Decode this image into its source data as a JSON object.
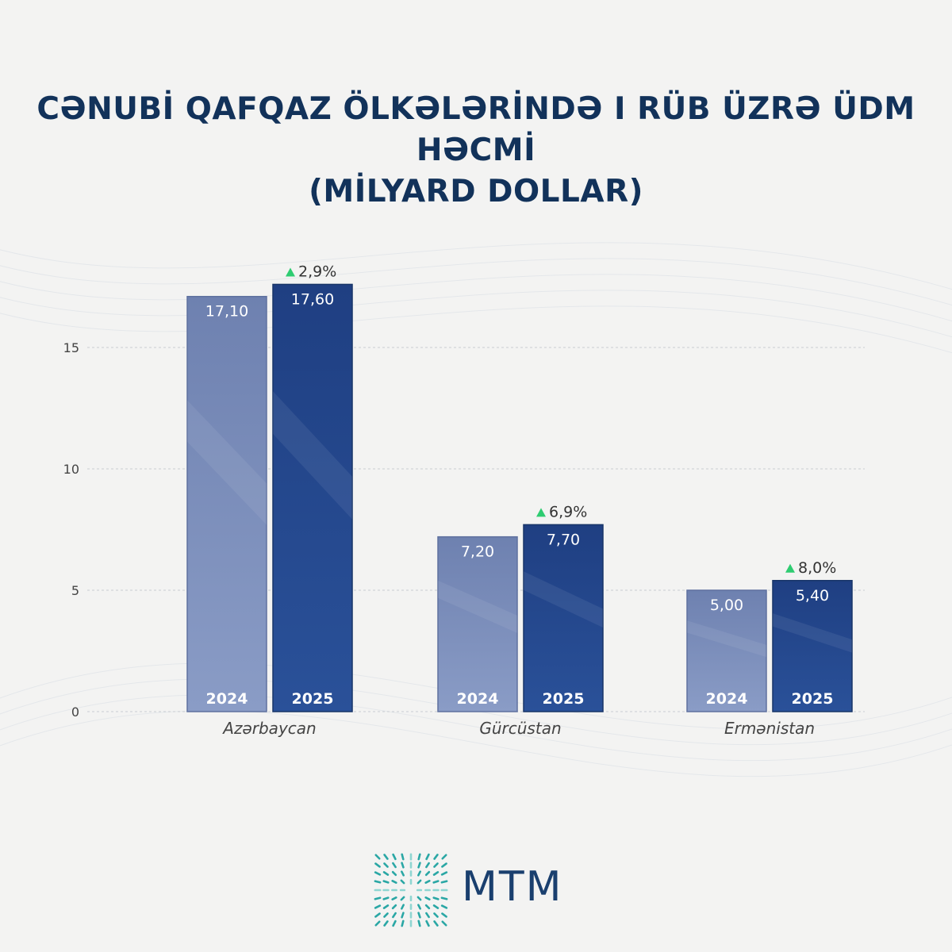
{
  "title": {
    "line1": "CƏNUBİ QAFQAZ ÖLKƏLƏRİNDƏ I RÜB ÜZRƏ ÜDM HƏCMİ",
    "line2": "(MİLYARD DOLLAR)"
  },
  "brand": {
    "name": "MTM"
  },
  "colors": {
    "title": "#12325a",
    "bar_2024": "#7d8fba",
    "bar_2025": "#244a8f",
    "up_arrow": "#2ecc71",
    "axis_text": "#333333",
    "logo": "#2aa7a5"
  },
  "chart_data": {
    "type": "bar",
    "categories": [
      "Azərbaycan",
      "Gürcüstan",
      "Ermənistan"
    ],
    "series": [
      {
        "name": "2024",
        "values": [
          17.1,
          7.2,
          5.0
        ],
        "labels": [
          "17,10",
          "7,20",
          "5,00"
        ]
      },
      {
        "name": "2025",
        "values": [
          17.6,
          7.7,
          5.4
        ],
        "labels": [
          "17,60",
          "7,70",
          "5,40"
        ]
      }
    ],
    "changes": [
      "2,9%",
      "6,9%",
      "8,0%"
    ],
    "change_icon": "up-triangle-icon",
    "yticks": [
      0,
      5,
      10,
      15
    ],
    "ylim": [
      0,
      18
    ],
    "grid": true,
    "legend": "in-bar year labels"
  }
}
